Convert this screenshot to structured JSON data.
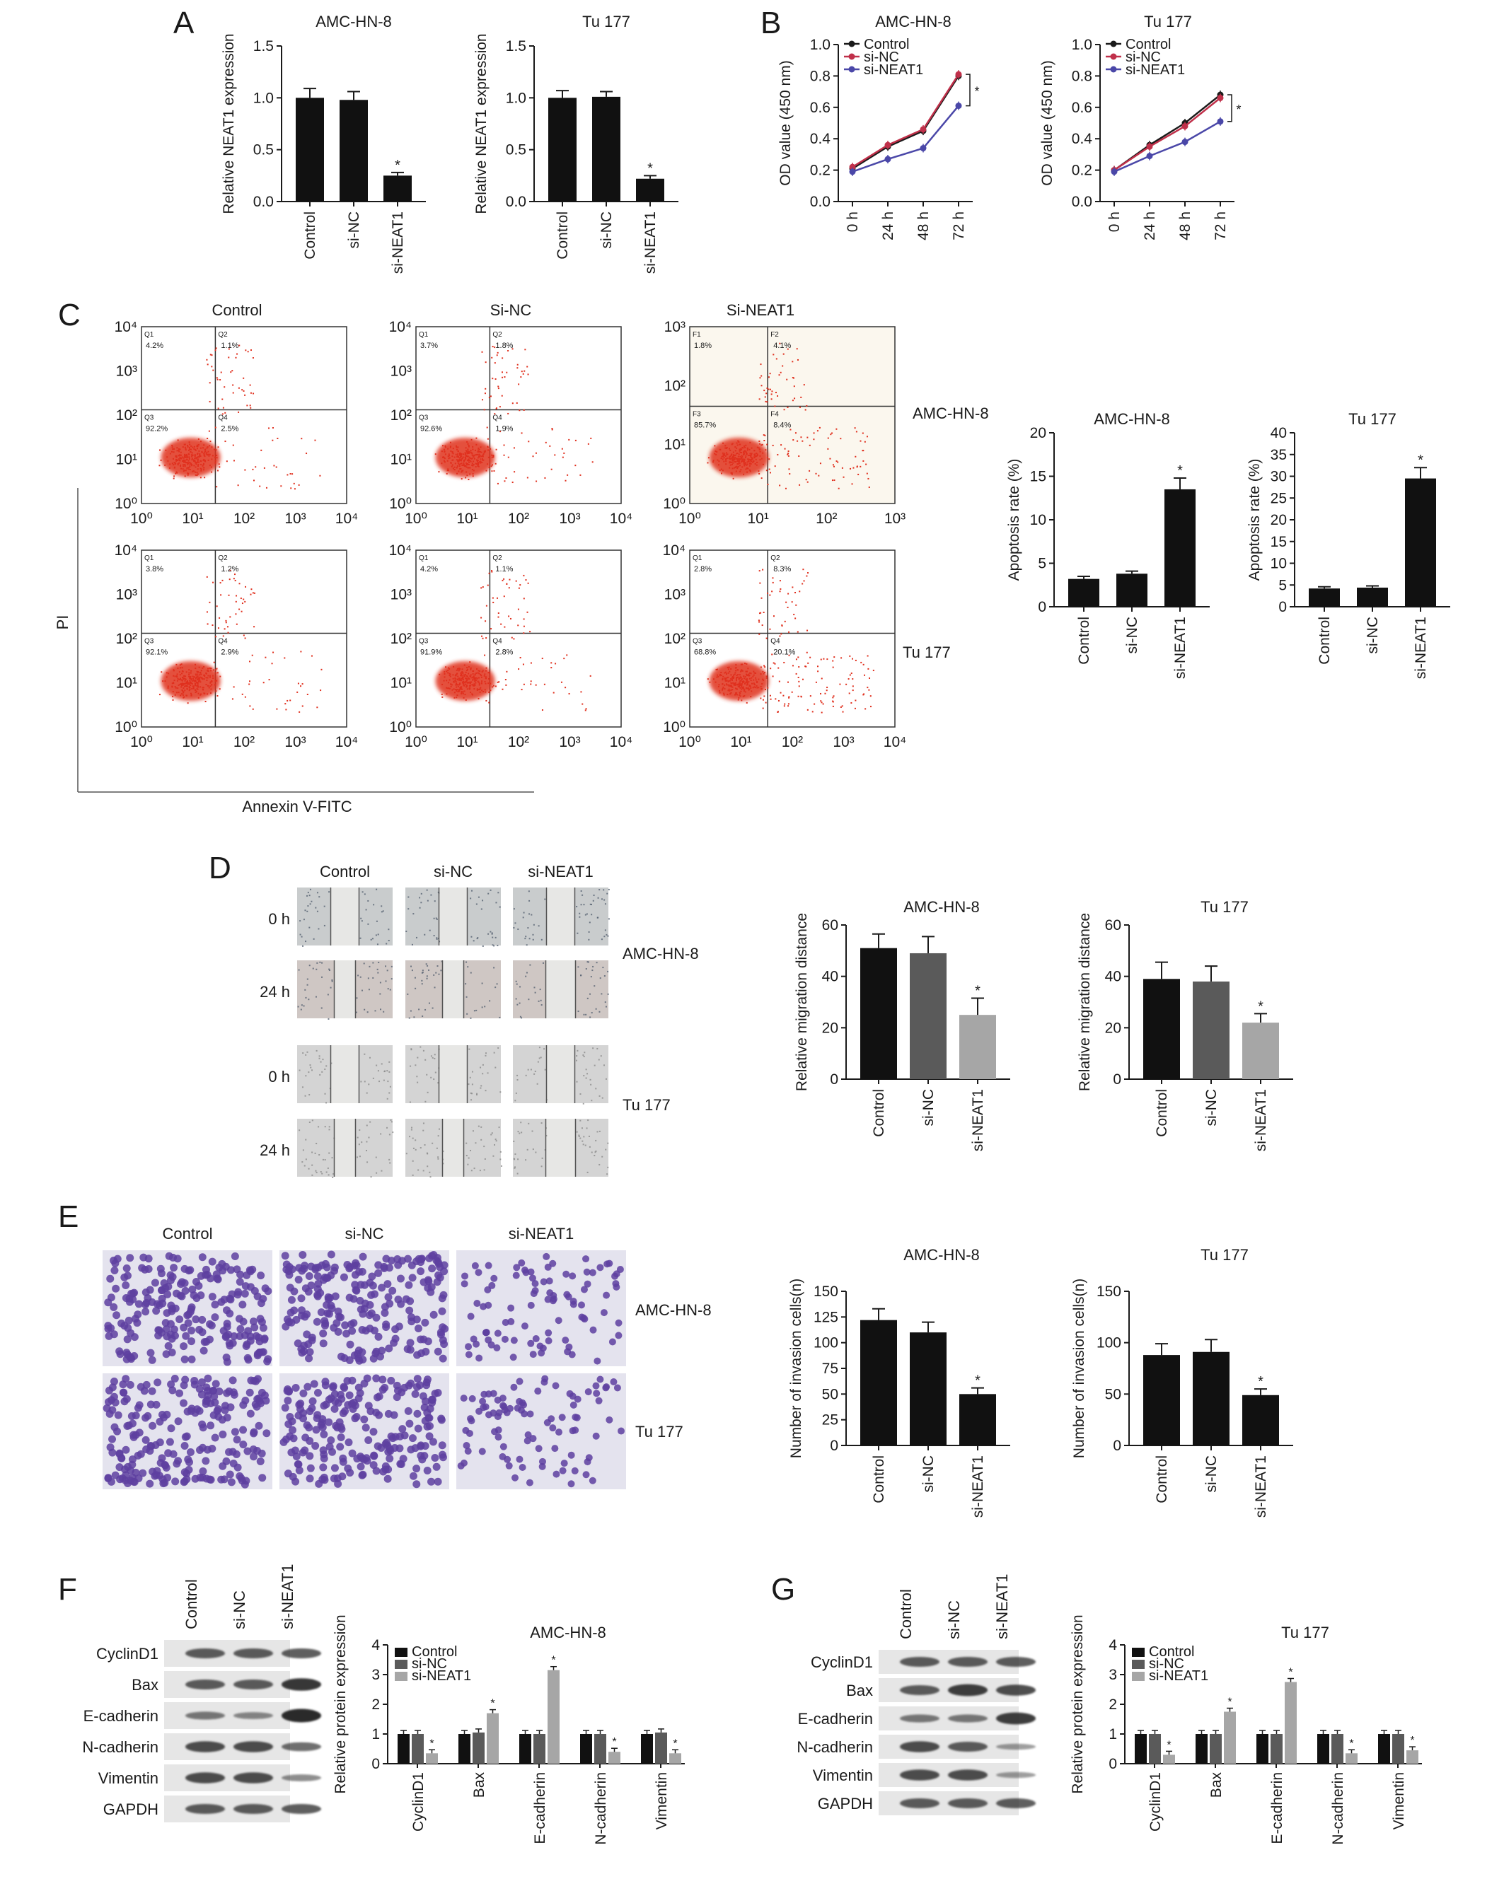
{
  "panels": {
    "A": "A",
    "B": "B",
    "C": "C",
    "D": "D",
    "E": "E",
    "F": "F",
    "G": "G"
  },
  "star": "*",
  "cells": {
    "amc": "AMC-HN-8",
    "tu": "Tu 177"
  },
  "groups3": [
    "Control",
    "si-NC",
    "si-NEAT1"
  ],
  "panelA": {
    "ylabel": "Relative NEAT1 expression",
    "yticks": [
      "0.0",
      "0.5",
      "1.0",
      "1.5"
    ],
    "charts": [
      {
        "title": "AMC-HN-8",
        "values": [
          1.0,
          0.98,
          0.25
        ],
        "errors": [
          0.09,
          0.08,
          0.03
        ]
      },
      {
        "title": "Tu 177",
        "values": [
          1.0,
          1.01,
          0.22
        ],
        "errors": [
          0.07,
          0.05,
          0.03
        ]
      }
    ]
  },
  "panelB": {
    "ylabel": "OD value (450 nm)",
    "yticks": [
      "0.0",
      "0.2",
      "0.4",
      "0.6",
      "0.8",
      "1.0"
    ],
    "xticks": [
      "0 h",
      "24 h",
      "48 h",
      "72 h"
    ],
    "colors": [
      "#1a1a1a",
      "#c0304a",
      "#4a47a8"
    ],
    "charts": [
      {
        "title": "AMC-HN-8",
        "series": [
          {
            "name": "Control",
            "values": [
              0.21,
              0.35,
              0.45,
              0.8
            ]
          },
          {
            "name": "si-NC",
            "values": [
              0.22,
              0.36,
              0.46,
              0.81
            ]
          },
          {
            "name": "si-NEAT1",
            "values": [
              0.19,
              0.27,
              0.34,
              0.61
            ]
          }
        ]
      },
      {
        "title": "Tu 177",
        "series": [
          {
            "name": "Control",
            "values": [
              0.2,
              0.36,
              0.5,
              0.68
            ]
          },
          {
            "name": "si-NC",
            "values": [
              0.2,
              0.35,
              0.48,
              0.66
            ]
          },
          {
            "name": "si-NEAT1",
            "values": [
              0.19,
              0.29,
              0.38,
              0.51
            ]
          }
        ]
      }
    ]
  },
  "panelC": {
    "cols": [
      "Control",
      "Si-NC",
      "Si-NEAT1"
    ],
    "axis_y": "PI",
    "axis_x": "Annexin V-FITC",
    "plots": [
      {
        "id": "c-amc-control",
        "q": [
          "Q1",
          "Q2",
          "Q3",
          "Q4"
        ],
        "vals": [
          "4.2%",
          "1.1%",
          "92.2%",
          "2.5%"
        ],
        "yt": [
          "10⁰",
          "10¹",
          "10²",
          "10³",
          "10⁴"
        ],
        "xt": [
          "10⁰",
          "10¹",
          "10²",
          "10³",
          "10⁴"
        ],
        "tint": "#ffffff"
      },
      {
        "id": "c-amc-sinc",
        "q": [
          "Q1",
          "Q2",
          "Q3",
          "Q4"
        ],
        "vals": [
          "3.7%",
          "1.8%",
          "92.6%",
          "1.9%"
        ],
        "yt": [
          "10⁰",
          "10¹",
          "10²",
          "10³",
          "10⁴"
        ],
        "xt": [
          "10⁰",
          "10¹",
          "10²",
          "10³",
          "10⁴"
        ],
        "tint": "#ffffff"
      },
      {
        "id": "c-amc-sineat1",
        "q": [
          "F1",
          "F2",
          "F3",
          "F4"
        ],
        "vals": [
          "1.8%",
          "4.1%",
          "85.7%",
          "8.4%"
        ],
        "yt": [
          "10⁰",
          "10¹",
          "10²",
          "10³"
        ],
        "xt": [
          "10⁰",
          "10¹",
          "10²",
          "10³"
        ],
        "tint": "#fbf7ee"
      },
      {
        "id": "c-tu-control",
        "q": [
          "Q1",
          "Q2",
          "Q3",
          "Q4"
        ],
        "vals": [
          "3.8%",
          "1.2%",
          "92.1%",
          "2.9%"
        ],
        "yt": [
          "10⁰",
          "10¹",
          "10²",
          "10³",
          "10⁴"
        ],
        "xt": [
          "10⁰",
          "10¹",
          "10²",
          "10³",
          "10⁴"
        ],
        "tint": "#ffffff"
      },
      {
        "id": "c-tu-sinc",
        "q": [
          "Q1",
          "Q2",
          "Q3",
          "Q4"
        ],
        "vals": [
          "4.2%",
          "1.1%",
          "91.9%",
          "2.8%"
        ],
        "yt": [
          "10⁰",
          "10¹",
          "10²",
          "10³",
          "10⁴"
        ],
        "xt": [
          "10⁰",
          "10¹",
          "10²",
          "10³",
          "10⁴"
        ],
        "tint": "#ffffff"
      },
      {
        "id": "c-tu-sineat1",
        "q": [
          "Q1",
          "Q2",
          "Q3",
          "Q4"
        ],
        "vals": [
          "2.8%",
          "8.3%",
          "68.8%",
          "20.1%"
        ],
        "yt": [
          "10⁰",
          "10¹",
          "10²",
          "10³",
          "10⁴"
        ],
        "xt": [
          "10⁰",
          "10¹",
          "10²",
          "10³",
          "10⁴"
        ],
        "tint": "#ffffff"
      }
    ],
    "bars": {
      "ylabel": "Apoptosis rate (%)",
      "charts": [
        {
          "title": "AMC-HN-8",
          "yticks": [
            "0",
            "5",
            "10",
            "15",
            "20"
          ],
          "ymax": 20,
          "values": [
            3.2,
            3.8,
            13.5
          ],
          "errors": [
            0.3,
            0.3,
            1.3
          ]
        },
        {
          "title": "Tu 177",
          "yticks": [
            "0",
            "5",
            "10",
            "15",
            "20",
            "25",
            "30",
            "35",
            "40"
          ],
          "ymax": 40,
          "values": [
            4.2,
            4.4,
            29.5
          ],
          "errors": [
            0.4,
            0.4,
            2.5
          ]
        }
      ]
    }
  },
  "panelD": {
    "cols": [
      "Control",
      "si-NC",
      "si-NEAT1"
    ],
    "rows": [
      "0 h",
      "24 h",
      "0 h",
      "24 h"
    ],
    "ylabel": "Relative migration distance",
    "yticks": [
      "0",
      "20",
      "40",
      "60"
    ],
    "colors": [
      "#111111",
      "#5a5a5a",
      "#a6a6a6"
    ],
    "charts": [
      {
        "title": "AMC-HN-8",
        "values": [
          51,
          49,
          25
        ],
        "errors": [
          5.5,
          6.5,
          6.5
        ]
      },
      {
        "title": "Tu 177",
        "values": [
          39,
          38,
          22
        ],
        "errors": [
          6.5,
          6.0,
          3.5
        ]
      }
    ]
  },
  "panelE": {
    "cols": [
      "Control",
      "si-NC",
      "si-NEAT1"
    ],
    "ylabel": "Number of invasion cells(n)",
    "yticks": [
      "0",
      "25",
      "50",
      "75",
      "100",
      "125",
      "150"
    ],
    "yticks2": [
      "0",
      "50",
      "100",
      "150"
    ],
    "charts": [
      {
        "title": "AMC-HN-8",
        "values": [
          122,
          110,
          50
        ],
        "errors": [
          11,
          10,
          6
        ]
      },
      {
        "title": "Tu 177",
        "values": [
          88,
          91,
          49
        ],
        "errors": [
          11,
          12,
          6
        ]
      }
    ]
  },
  "panelF": {
    "proteins": [
      "CyclinD1",
      "Bax",
      "E-cadherin",
      "N-cadherin",
      "Vimentin",
      "GAPDH"
    ],
    "ylabel": "Relative protein expression",
    "yticks": [
      "0",
      "1",
      "2",
      "3",
      "4"
    ],
    "chart_title": "AMC-HN-8",
    "values": [
      [
        1.0,
        1.0,
        0.35
      ],
      [
        1.0,
        1.05,
        1.7
      ],
      [
        1.0,
        1.0,
        3.15
      ],
      [
        1.0,
        1.0,
        0.4
      ],
      [
        1.0,
        1.05,
        0.35
      ]
    ],
    "band_i": [
      [
        1,
        1,
        1
      ],
      [
        1,
        1,
        1.25
      ],
      [
        0.8,
        0.7,
        1.35
      ],
      [
        1.1,
        1.1,
        0.9
      ],
      [
        1.1,
        1.1,
        0.7
      ],
      [
        1,
        1,
        1
      ]
    ]
  },
  "panelG": {
    "chart_title": "Tu 177",
    "values": [
      [
        1.0,
        1.0,
        0.3
      ],
      [
        1.0,
        1.0,
        1.75
      ],
      [
        1.0,
        1.0,
        2.75
      ],
      [
        1.0,
        1.0,
        0.35
      ],
      [
        1.0,
        1.0,
        0.45
      ]
    ],
    "band_i": [
      [
        1,
        1,
        1
      ],
      [
        1,
        1.2,
        1.1
      ],
      [
        0.8,
        0.8,
        1.2
      ],
      [
        1.1,
        1.0,
        0.6
      ],
      [
        1.1,
        1.1,
        0.6
      ],
      [
        1,
        1,
        1
      ]
    ]
  },
  "chart_data": [
    {
      "type": "bar",
      "title": "AMC-HN-8",
      "ylabel": "Relative NEAT1 expression",
      "categories": [
        "Control",
        "si-NC",
        "si-NEAT1"
      ],
      "values": [
        1.0,
        0.98,
        0.25
      ],
      "ylim": [
        0,
        1.5
      ]
    },
    {
      "type": "bar",
      "title": "Tu 177",
      "ylabel": "Relative NEAT1 expression",
      "categories": [
        "Control",
        "si-NC",
        "si-NEAT1"
      ],
      "values": [
        1.0,
        1.01,
        0.22
      ],
      "ylim": [
        0,
        1.5
      ]
    },
    {
      "type": "line",
      "title": "AMC-HN-8",
      "ylabel": "OD value (450 nm)",
      "x": [
        "0 h",
        "24 h",
        "48 h",
        "72 h"
      ],
      "series": [
        {
          "name": "Control",
          "values": [
            0.21,
            0.35,
            0.45,
            0.8
          ]
        },
        {
          "name": "si-NC",
          "values": [
            0.22,
            0.36,
            0.46,
            0.81
          ]
        },
        {
          "name": "si-NEAT1",
          "values": [
            0.19,
            0.27,
            0.34,
            0.61
          ]
        }
      ],
      "ylim": [
        0,
        1.0
      ],
      "legend": "top-left"
    },
    {
      "type": "line",
      "title": "Tu 177",
      "ylabel": "OD value (450 nm)",
      "x": [
        "0 h",
        "24 h",
        "48 h",
        "72 h"
      ],
      "series": [
        {
          "name": "Control",
          "values": [
            0.2,
            0.36,
            0.5,
            0.68
          ]
        },
        {
          "name": "si-NC",
          "values": [
            0.2,
            0.35,
            0.48,
            0.66
          ]
        },
        {
          "name": "si-NEAT1",
          "values": [
            0.19,
            0.29,
            0.38,
            0.51
          ]
        }
      ],
      "ylim": [
        0,
        1.0
      ],
      "legend": "top-left"
    },
    {
      "type": "bar",
      "title": "AMC-HN-8",
      "ylabel": "Apoptosis rate (%)",
      "categories": [
        "Control",
        "si-NC",
        "si-NEAT1"
      ],
      "values": [
        3.2,
        3.8,
        13.5
      ],
      "ylim": [
        0,
        20
      ]
    },
    {
      "type": "bar",
      "title": "Tu 177",
      "ylabel": "Apoptosis rate (%)",
      "categories": [
        "Control",
        "si-NC",
        "si-NEAT1"
      ],
      "values": [
        4.2,
        4.4,
        29.5
      ],
      "ylim": [
        0,
        40
      ]
    },
    {
      "type": "bar",
      "title": "AMC-HN-8",
      "ylabel": "Relative migration distance",
      "categories": [
        "Control",
        "si-NC",
        "si-NEAT1"
      ],
      "values": [
        51,
        49,
        25
      ],
      "ylim": [
        0,
        60
      ]
    },
    {
      "type": "bar",
      "title": "Tu 177",
      "ylabel": "Relative migration distance",
      "categories": [
        "Control",
        "si-NC",
        "si-NEAT1"
      ],
      "values": [
        39,
        38,
        22
      ],
      "ylim": [
        0,
        60
      ]
    },
    {
      "type": "bar",
      "title": "AMC-HN-8",
      "ylabel": "Number of invasion cells(n)",
      "categories": [
        "Control",
        "si-NC",
        "si-NEAT1"
      ],
      "values": [
        122,
        110,
        50
      ],
      "ylim": [
        0,
        150
      ]
    },
    {
      "type": "bar",
      "title": "Tu 177",
      "ylabel": "Number of invasion cells(n)",
      "categories": [
        "Control",
        "si-NC",
        "si-NEAT1"
      ],
      "values": [
        88,
        91,
        49
      ],
      "ylim": [
        0,
        150
      ]
    },
    {
      "type": "bar",
      "title": "AMC-HN-8",
      "ylabel": "Relative protein expression",
      "categories": [
        "CyclinD1",
        "Bax",
        "E-cadherin",
        "N-cadherin",
        "Vimentin"
      ],
      "series": [
        {
          "name": "Control",
          "values": [
            1.0,
            1.0,
            1.0,
            1.0,
            1.0
          ]
        },
        {
          "name": "si-NC",
          "values": [
            1.0,
            1.05,
            1.0,
            1.0,
            1.05
          ]
        },
        {
          "name": "si-NEAT1",
          "values": [
            0.35,
            1.7,
            3.15,
            0.4,
            0.35
          ]
        }
      ],
      "ylim": [
        0,
        4
      ],
      "legend": "top-left"
    },
    {
      "type": "bar",
      "title": "Tu 177",
      "ylabel": "Relative protein expression",
      "categories": [
        "CyclinD1",
        "Bax",
        "E-cadherin",
        "N-cadherin",
        "Vimentin"
      ],
      "series": [
        {
          "name": "Control",
          "values": [
            1.0,
            1.0,
            1.0,
            1.0,
            1.0
          ]
        },
        {
          "name": "si-NC",
          "values": [
            1.0,
            1.0,
            1.0,
            1.0,
            1.0
          ]
        },
        {
          "name": "si-NEAT1",
          "values": [
            0.3,
            1.75,
            2.75,
            0.35,
            0.45
          ]
        }
      ],
      "ylim": [
        0,
        4
      ],
      "legend": "top-left"
    }
  ]
}
